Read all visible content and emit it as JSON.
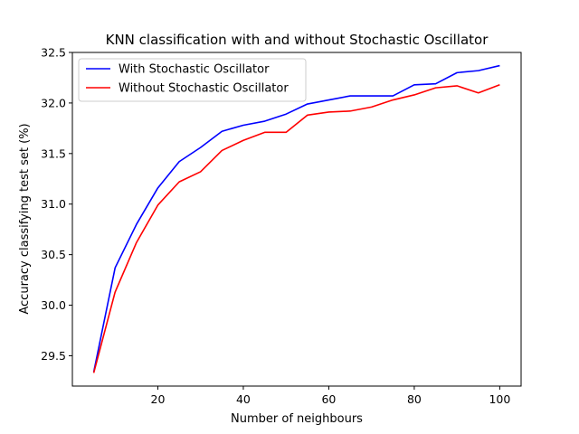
{
  "chart_data": {
    "type": "line",
    "title": "KNN classification with and without Stochastic Oscillator",
    "xlabel": "Number of neighbours",
    "ylabel": "Accuracy classifying test set (%)",
    "xlim": [
      0,
      105
    ],
    "ylim": [
      29.2,
      32.5
    ],
    "xticks": [
      20,
      40,
      60,
      80,
      100
    ],
    "yticks": [
      29.5,
      30.0,
      30.5,
      31.0,
      31.5,
      32.0,
      32.5
    ],
    "grid": false,
    "legend_position": "top-left",
    "x": [
      5,
      10,
      15,
      20,
      25,
      30,
      35,
      40,
      45,
      50,
      55,
      60,
      65,
      70,
      75,
      80,
      85,
      90,
      95,
      100
    ],
    "series": [
      {
        "name": "With Stochastic Oscillator",
        "color": "#0000ff",
        "values": [
          29.34,
          30.37,
          30.8,
          31.16,
          31.42,
          31.56,
          31.72,
          31.78,
          31.82,
          31.89,
          31.99,
          32.03,
          32.07,
          32.07,
          32.07,
          32.18,
          32.19,
          32.3,
          32.32,
          32.37
        ]
      },
      {
        "name": "Without Stochastic Oscillator",
        "color": "#ff0000",
        "values": [
          29.33,
          30.13,
          30.62,
          30.99,
          31.22,
          31.32,
          31.53,
          31.63,
          31.71,
          31.71,
          31.88,
          31.91,
          31.92,
          31.96,
          32.03,
          32.08,
          32.15,
          32.17,
          32.1,
          32.18
        ]
      }
    ]
  }
}
